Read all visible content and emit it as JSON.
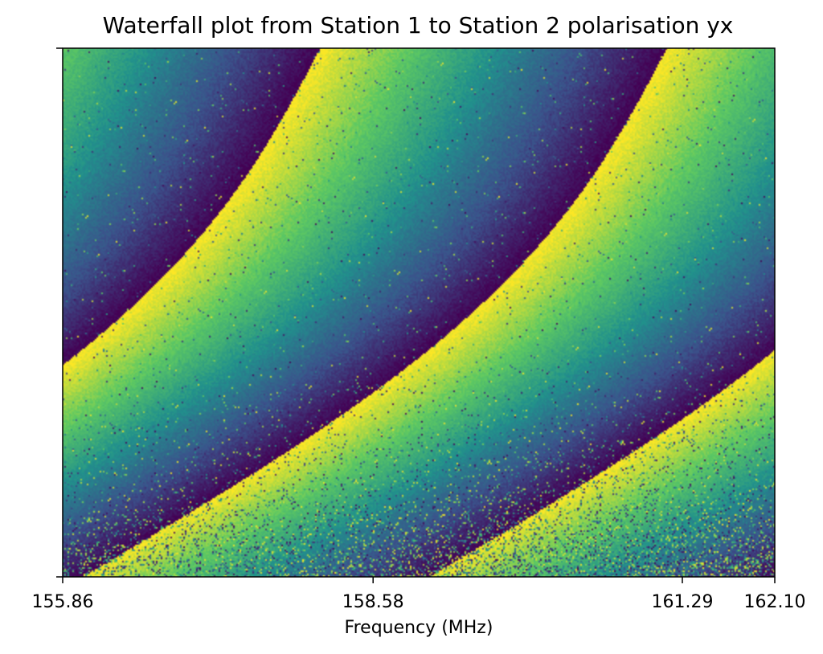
{
  "chart_data": {
    "type": "heatmap",
    "title": "Waterfall plot from Station 1 to Station 2 polarisation yx",
    "xlabel": "Frequency (MHz)",
    "ylabel": "",
    "xlim": [
      155.86,
      162.1
    ],
    "x_ticks": [
      "155.86",
      "158.58",
      "161.29",
      "162.10"
    ],
    "colormap": "viridis",
    "colormap_stops": [
      "#440154",
      "#3b528b",
      "#21918c",
      "#5ec962",
      "#fde725"
    ],
    "grid": false,
    "legend": "none"
  }
}
